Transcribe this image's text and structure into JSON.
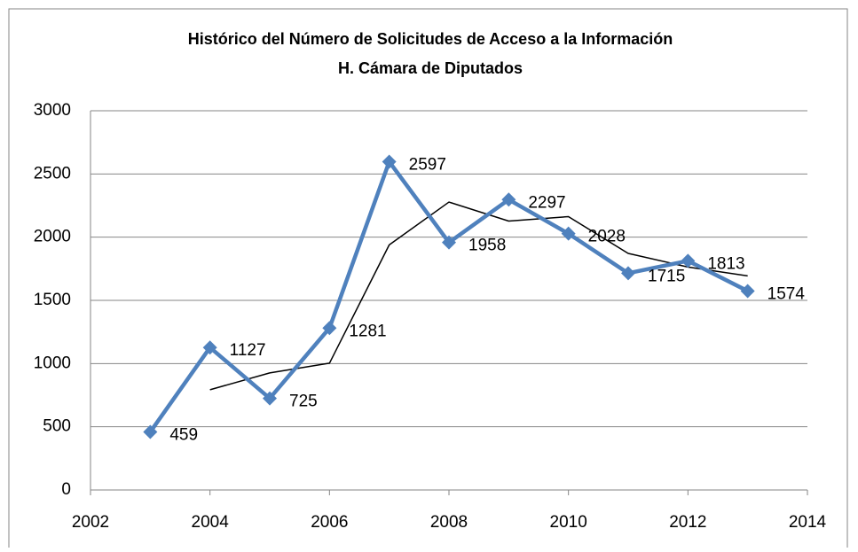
{
  "chart_data": {
    "type": "line",
    "title": "Histórico del Número de Solicitudes de Acceso a la Información",
    "subtitle": "H. Cámara de Diputados",
    "x": [
      2003,
      2004,
      2005,
      2006,
      2007,
      2008,
      2009,
      2010,
      2011,
      2012,
      2013
    ],
    "series": [
      {
        "color": "#4f81bd",
        "values": [
          459,
          1127,
          725,
          1281,
          2597,
          1958,
          2297,
          2028,
          1715,
          1813,
          1574
        ]
      },
      {
        "color": "#000000",
        "values": [
          null,
          793,
          926,
          1003,
          1939,
          2277.5,
          2127.5,
          2162.5,
          1871.5,
          1764,
          1693.5
        ]
      }
    ],
    "xlim": [
      2002,
      2014
    ],
    "xticks": [
      2002,
      2004,
      2006,
      2008,
      2010,
      2012,
      2014
    ],
    "ylim": [
      0,
      3000
    ],
    "yticks": [
      0,
      500,
      1000,
      1500,
      2000,
      2500,
      3000
    ],
    "grid": true
  }
}
